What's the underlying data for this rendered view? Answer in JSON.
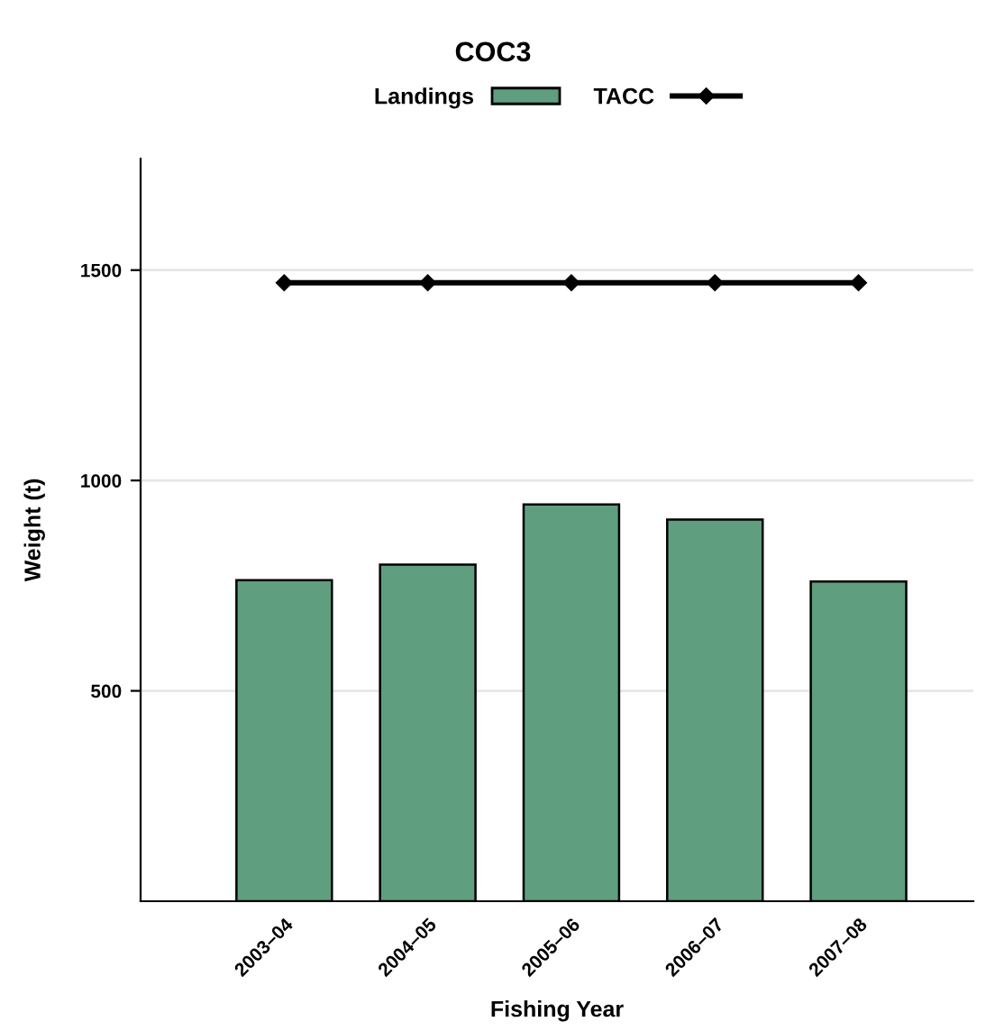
{
  "chart_data": {
    "type": "bar",
    "title": "COC3",
    "xlabel": "Fishing Year",
    "ylabel": "Weight (t)",
    "categories": [
      "2003–04",
      "2004–05",
      "2005–06",
      "2006–07",
      "2007–08"
    ],
    "series": [
      {
        "name": "Landings",
        "color": "#5f9e7e",
        "values": [
          763,
          800,
          943,
          907,
          760
        ]
      },
      {
        "name": "TACC",
        "type": "line",
        "color": "#000000",
        "marker": "diamond",
        "values": [
          1470,
          1470,
          1470,
          1470,
          1470
        ]
      }
    ],
    "ylim": [
      0,
      1765
    ],
    "yticks": [
      500,
      1000,
      1500
    ],
    "grid": "y",
    "legend": "top"
  }
}
